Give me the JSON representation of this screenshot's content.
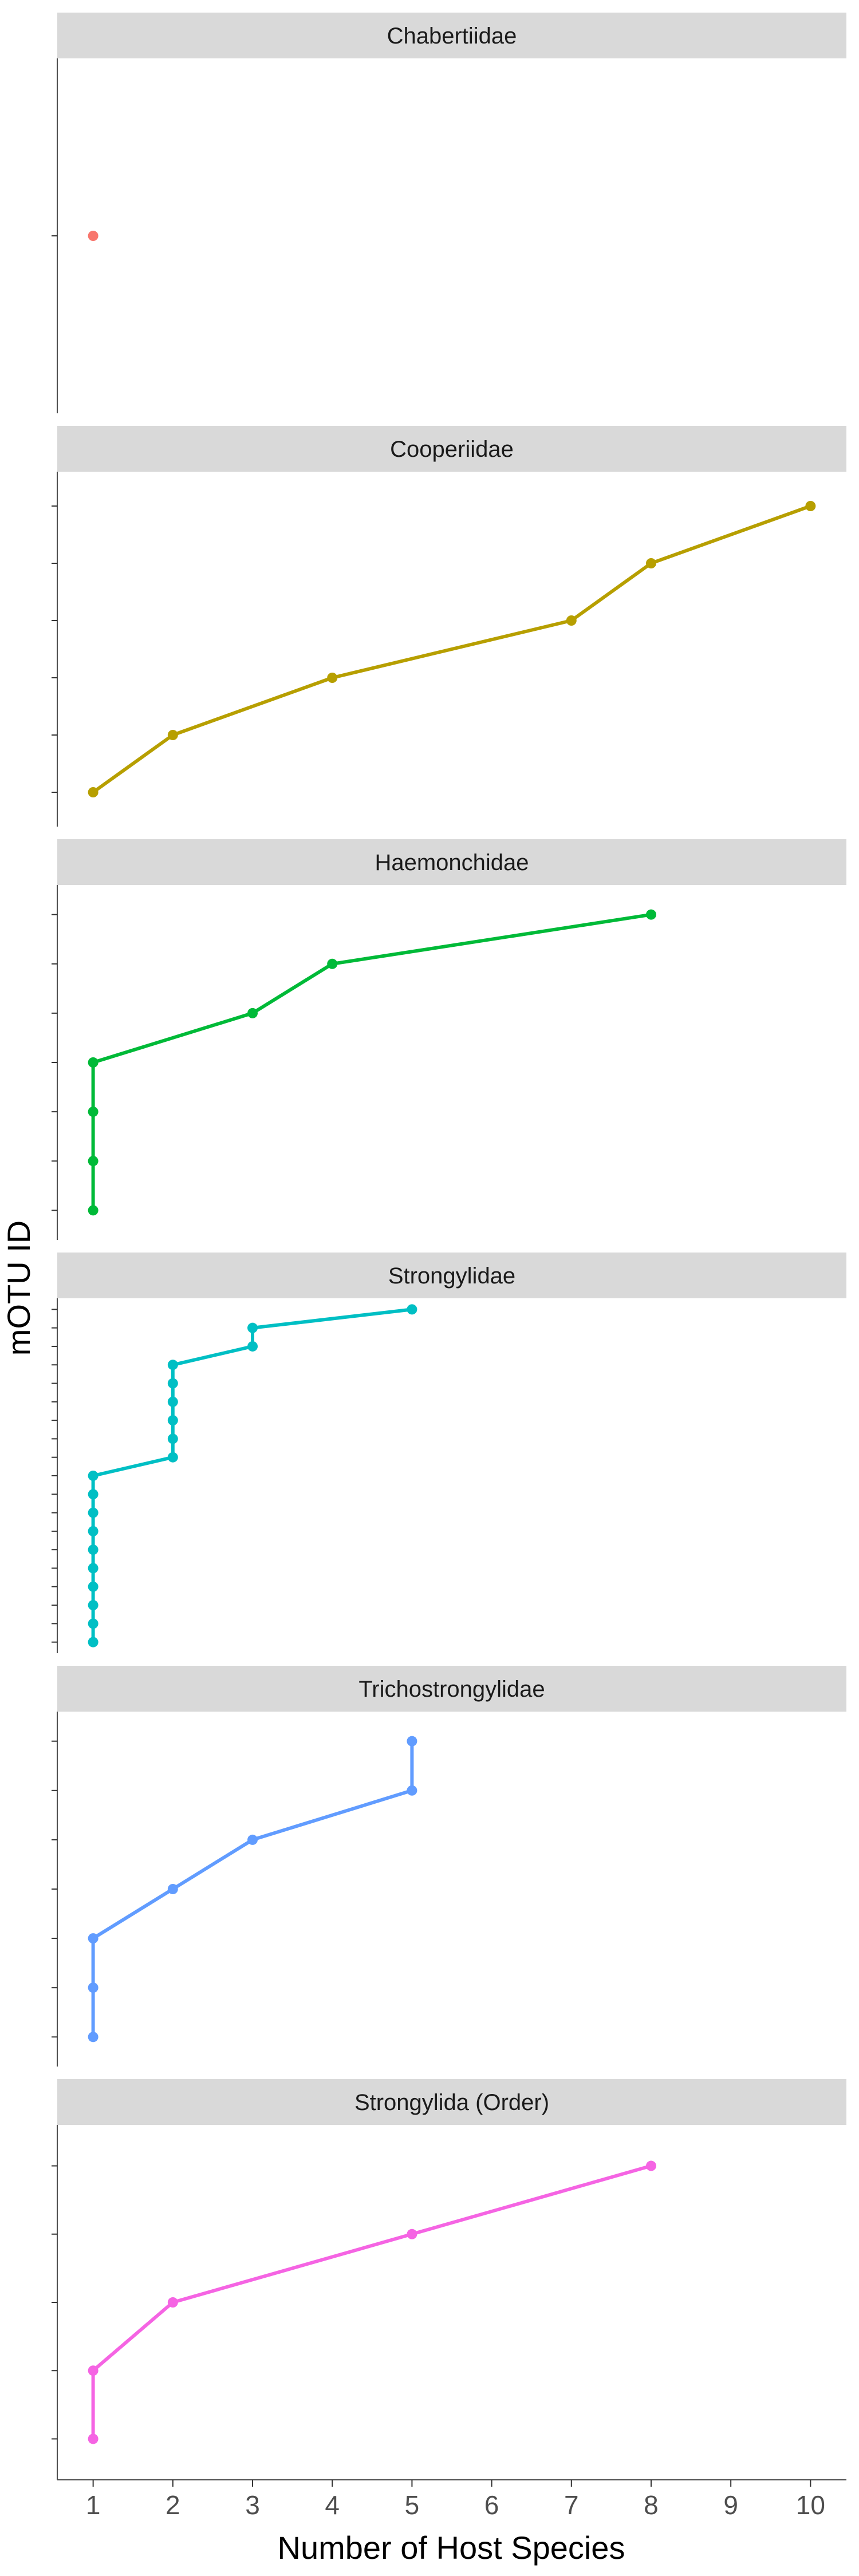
{
  "chart_data": {
    "type": "line",
    "xlabel": "Number of Host Species",
    "ylabel": "mOTU ID",
    "x_ticks": [
      1,
      2,
      3,
      4,
      5,
      6,
      7,
      8,
      9,
      10
    ],
    "xlim": [
      0.55,
      10.45
    ],
    "grid": false,
    "legend": "none",
    "panels": [
      {
        "name": "Chabertiidae",
        "color": "#F8766D",
        "y_count": 1,
        "x": [
          1
        ]
      },
      {
        "name": "Cooperiidae",
        "color": "#B79F00",
        "y_count": 6,
        "x": [
          1,
          2,
          4,
          7,
          8,
          10
        ]
      },
      {
        "name": "Haemonchidae",
        "color": "#00BA38",
        "y_count": 7,
        "x": [
          1,
          1,
          1,
          1,
          3,
          4,
          8
        ]
      },
      {
        "name": "Strongylidae",
        "color": "#00BFC4",
        "y_count": 19,
        "x": [
          1,
          1,
          1,
          1,
          1,
          1,
          1,
          1,
          1,
          1,
          2,
          2,
          2,
          2,
          2,
          2,
          3,
          3,
          5
        ]
      },
      {
        "name": "Trichostrongylidae",
        "color": "#619CFF",
        "y_count": 7,
        "x": [
          1,
          1,
          1,
          2,
          3,
          5,
          5
        ]
      },
      {
        "name": "Strongylida (Order)",
        "color": "#F564E3",
        "y_count": 5,
        "x": [
          1,
          1,
          2,
          5,
          8
        ]
      }
    ]
  }
}
